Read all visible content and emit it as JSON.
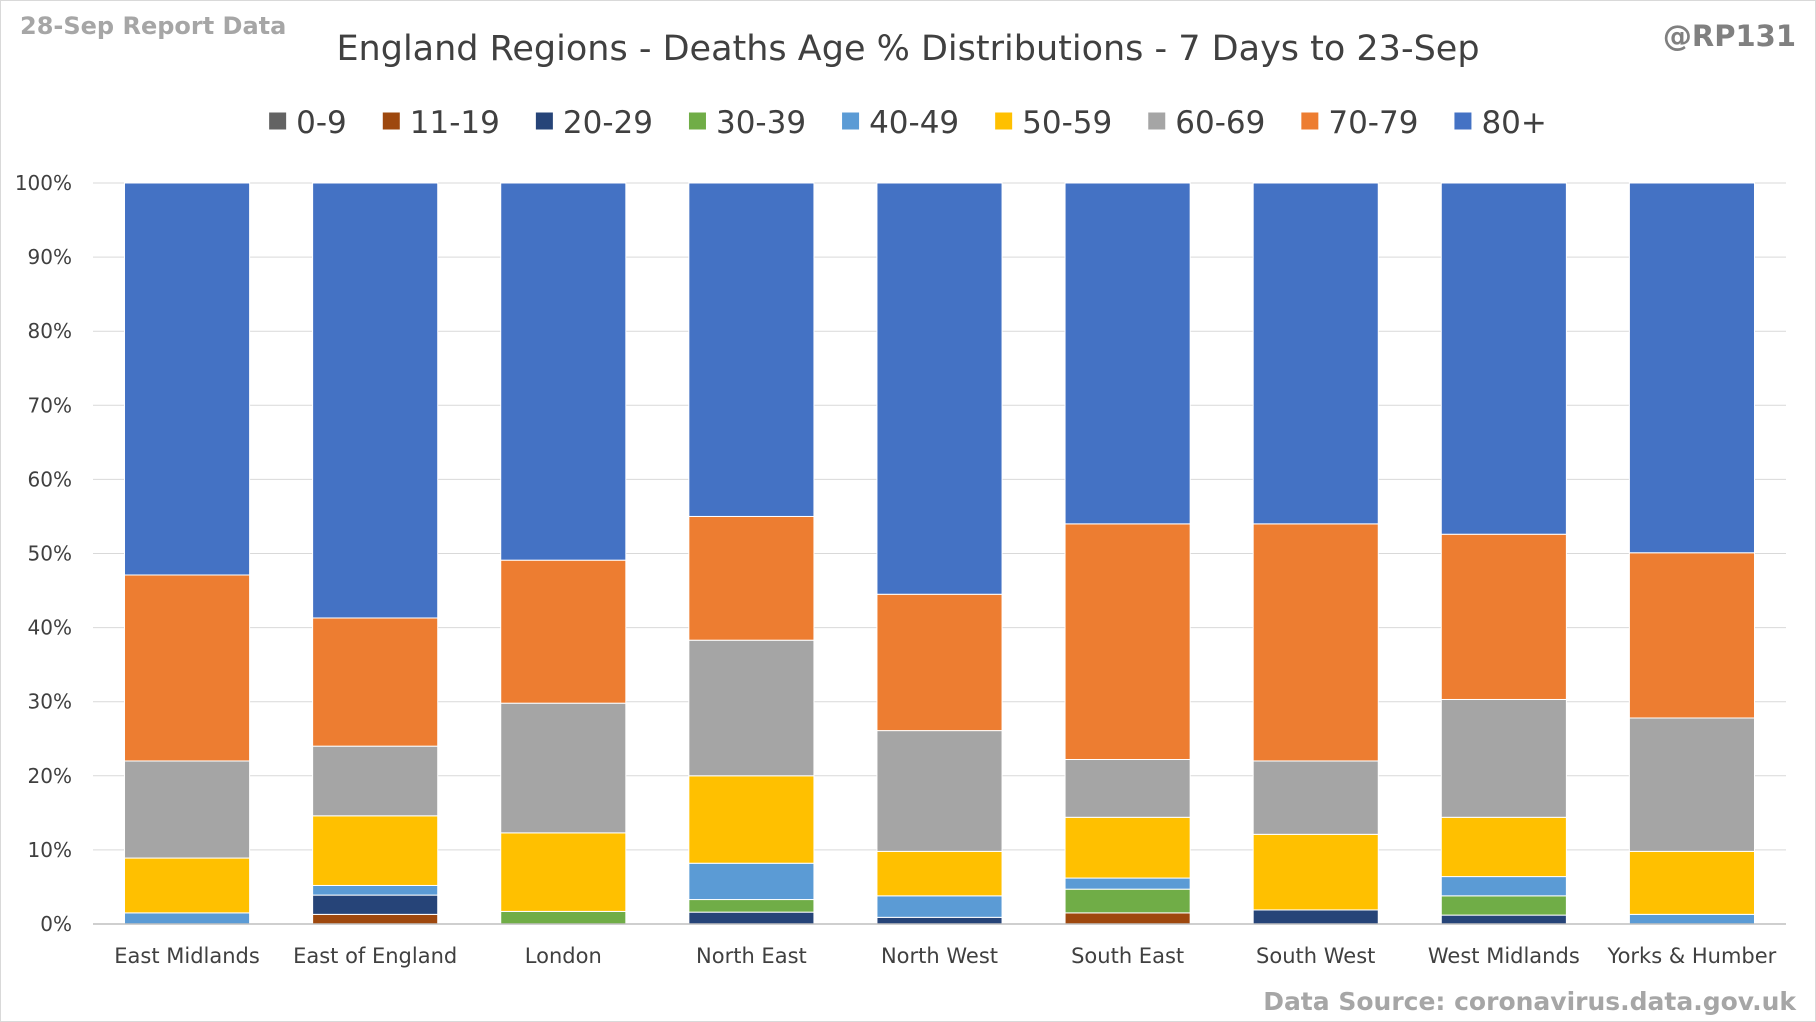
{
  "corner": {
    "report_label": "28-Sep Report Data",
    "handle": "@RP131",
    "source": "Data Source: coronavirus.data.gov.uk"
  },
  "colors": {
    "report_label": "#a6a6a6",
    "handle": "#808080",
    "source": "#a6a6a6",
    "text": "#404040",
    "grid": "#d9d9d9",
    "axis": "#bfbfbf"
  },
  "chart_data": {
    "type": "bar",
    "stacked": true,
    "percent": true,
    "title": "England Regions - Deaths Age % Distributions - 7 Days to 23-Sep",
    "xlabel": "",
    "ylabel": "",
    "ylim": [
      0,
      100
    ],
    "grid": true,
    "legend_position": "top",
    "y_ticks": [
      "0%",
      "10%",
      "20%",
      "30%",
      "40%",
      "50%",
      "60%",
      "70%",
      "80%",
      "90%",
      "100%"
    ],
    "categories": [
      "East Midlands",
      "East of England",
      "London",
      "North East",
      "North West",
      "South East",
      "South West",
      "West Midlands",
      "Yorks & Humber"
    ],
    "series": [
      {
        "name": "0-9",
        "color": "#636363",
        "values": [
          0,
          0,
          0,
          0,
          0,
          0,
          0,
          0,
          0
        ]
      },
      {
        "name": "11-19",
        "color": "#9e480e",
        "values": [
          0,
          1.3,
          0,
          0,
          0,
          1.5,
          0,
          0,
          0
        ]
      },
      {
        "name": "20-29",
        "color": "#264478",
        "values": [
          0,
          2.6,
          0,
          1.6,
          0.9,
          0,
          1.9,
          1.2,
          0
        ]
      },
      {
        "name": "30-39",
        "color": "#70ad47",
        "values": [
          0,
          0,
          1.7,
          1.7,
          0,
          3.2,
          0,
          2.6,
          0
        ]
      },
      {
        "name": "40-49",
        "color": "#5b9bd5",
        "values": [
          1.5,
          1.3,
          0,
          4.9,
          2.9,
          1.5,
          0,
          2.6,
          1.3
        ]
      },
      {
        "name": "50-59",
        "color": "#ffc000",
        "values": [
          7.4,
          9.4,
          10.6,
          11.8,
          6.0,
          8.2,
          10.2,
          8.0,
          8.5
        ]
      },
      {
        "name": "60-69",
        "color": "#a5a5a5",
        "values": [
          13.1,
          9.4,
          17.5,
          18.3,
          16.3,
          7.8,
          9.9,
          15.9,
          18.0
        ]
      },
      {
        "name": "70-79",
        "color": "#ed7d31",
        "values": [
          25.1,
          17.3,
          19.3,
          16.7,
          18.4,
          31.8,
          32.0,
          22.3,
          22.3
        ]
      },
      {
        "name": "80+",
        "color": "#4472c4",
        "values": [
          52.9,
          58.7,
          50.9,
          45.0,
          55.5,
          46.0,
          46.0,
          47.4,
          49.9
        ]
      }
    ]
  }
}
